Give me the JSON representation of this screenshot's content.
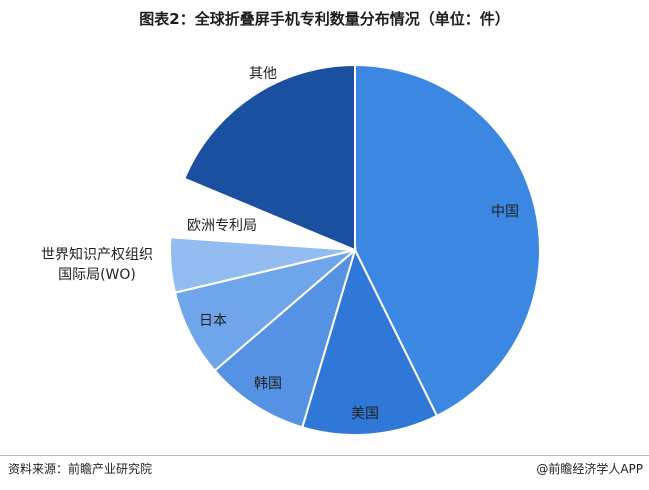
{
  "chart_data": {
    "type": "pie",
    "title": "图表2：全球折叠屏手机专利数量分布情况（单位：件）",
    "categories": [
      "中国",
      "美国",
      "韩国",
      "日本",
      "世界知识产权组织国际局(WO)",
      "欧洲专利局",
      "其他"
    ],
    "values": [
      42.7,
      11.9,
      9.1,
      7.6,
      4.8,
      5.2,
      18.7
    ],
    "colors": [
      "#3b87e2",
      "#2f78d8",
      "#5592e3",
      "#6fa5ea",
      "#93bdf1",
      "#ffffff",
      "#1b4f9f"
    ]
  },
  "footer": {
    "source": "资料来源：前瞻产业研究院",
    "brand": "@前瞻经济学人APP"
  }
}
